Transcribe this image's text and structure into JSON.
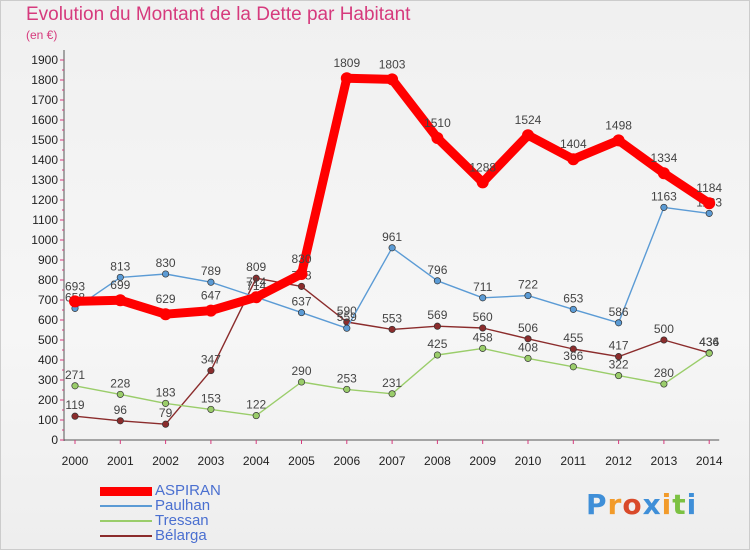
{
  "title": "Evolution du Montant de la Dette par Habitant",
  "subtitle": "(en €)",
  "logo_text": "Proxiti",
  "colors": {
    "title": "#d63a7d",
    "logo": [
      "#3f8fd8",
      "#f29b2a",
      "#d94a2a",
      "#3f8fd8",
      "#f29b2a",
      "#7cc142",
      "#3f8fd8"
    ]
  },
  "chart_data": {
    "type": "line",
    "title": "Evolution du Montant de la Dette par Habitant",
    "subtitle": "(en €)",
    "xlabel": "",
    "ylabel": "",
    "x": [
      "2000",
      "2001",
      "2002",
      "2003",
      "2004",
      "2005",
      "2006",
      "2007",
      "2008",
      "2009",
      "2010",
      "2011",
      "2012",
      "2013",
      "2014"
    ],
    "ylim": [
      0,
      1900
    ],
    "yticks": [
      0,
      100,
      200,
      300,
      400,
      500,
      600,
      700,
      800,
      900,
      1000,
      1100,
      1200,
      1300,
      1400,
      1500,
      1600,
      1700,
      1800,
      1900
    ],
    "grid": false,
    "legend_position": "bottom-left",
    "series": [
      {
        "name": "ASPIRAN",
        "color": "#ff0000",
        "values": [
          693,
          699,
          629,
          647,
          714,
          830,
          1809,
          1803,
          1510,
          1288,
          1524,
          1404,
          1498,
          1334,
          1184
        ]
      },
      {
        "name": "Paulhan",
        "color": "#5b9bd5",
        "values": [
          658,
          813,
          830,
          789,
          714,
          637,
          559,
          961,
          796,
          711,
          722,
          653,
          586,
          1163,
          1133
        ]
      },
      {
        "name": "Tressan",
        "color": "#9acd6a",
        "values": [
          271,
          228,
          183,
          153,
          122,
          290,
          253,
          231,
          425,
          458,
          408,
          366,
          322,
          280,
          434
        ]
      },
      {
        "name": "Bélarga",
        "color": "#8b2c2c",
        "values": [
          119,
          96,
          79,
          347,
          809,
          768,
          590,
          553,
          569,
          560,
          506,
          455,
          417,
          500,
          436
        ]
      }
    ]
  }
}
